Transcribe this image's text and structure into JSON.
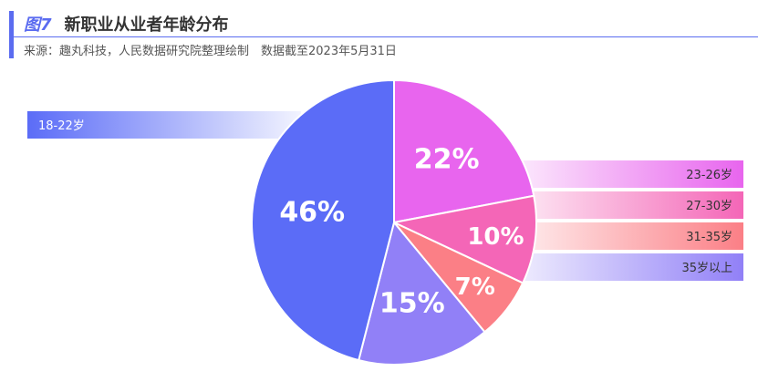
{
  "header": {
    "figure_number": "图7",
    "title": "新职业从业者年龄分布",
    "source": "来源：趣丸科技，人民数据研究院整理绘制　数据截至2023年5月31日"
  },
  "colors": {
    "accent": "#5b6cf0"
  },
  "chart_data": {
    "type": "pie",
    "title": "新职业从业者年龄分布",
    "slices": [
      {
        "label": "18-22岁",
        "value": 46,
        "display": "46%",
        "color": "#5b6cf7"
      },
      {
        "label": "23-26岁",
        "value": 22,
        "display": "22%",
        "color": "#e865ee"
      },
      {
        "label": "27-30岁",
        "value": 10,
        "display": "10%",
        "color": "#f466b7"
      },
      {
        "label": "31-35岁",
        "value": 7,
        "display": "7%",
        "color": "#fb7f86"
      },
      {
        "label": "35岁以上",
        "value": 15,
        "display": "15%",
        "color": "#9180f7"
      }
    ],
    "legend_placement": "beside slices"
  }
}
